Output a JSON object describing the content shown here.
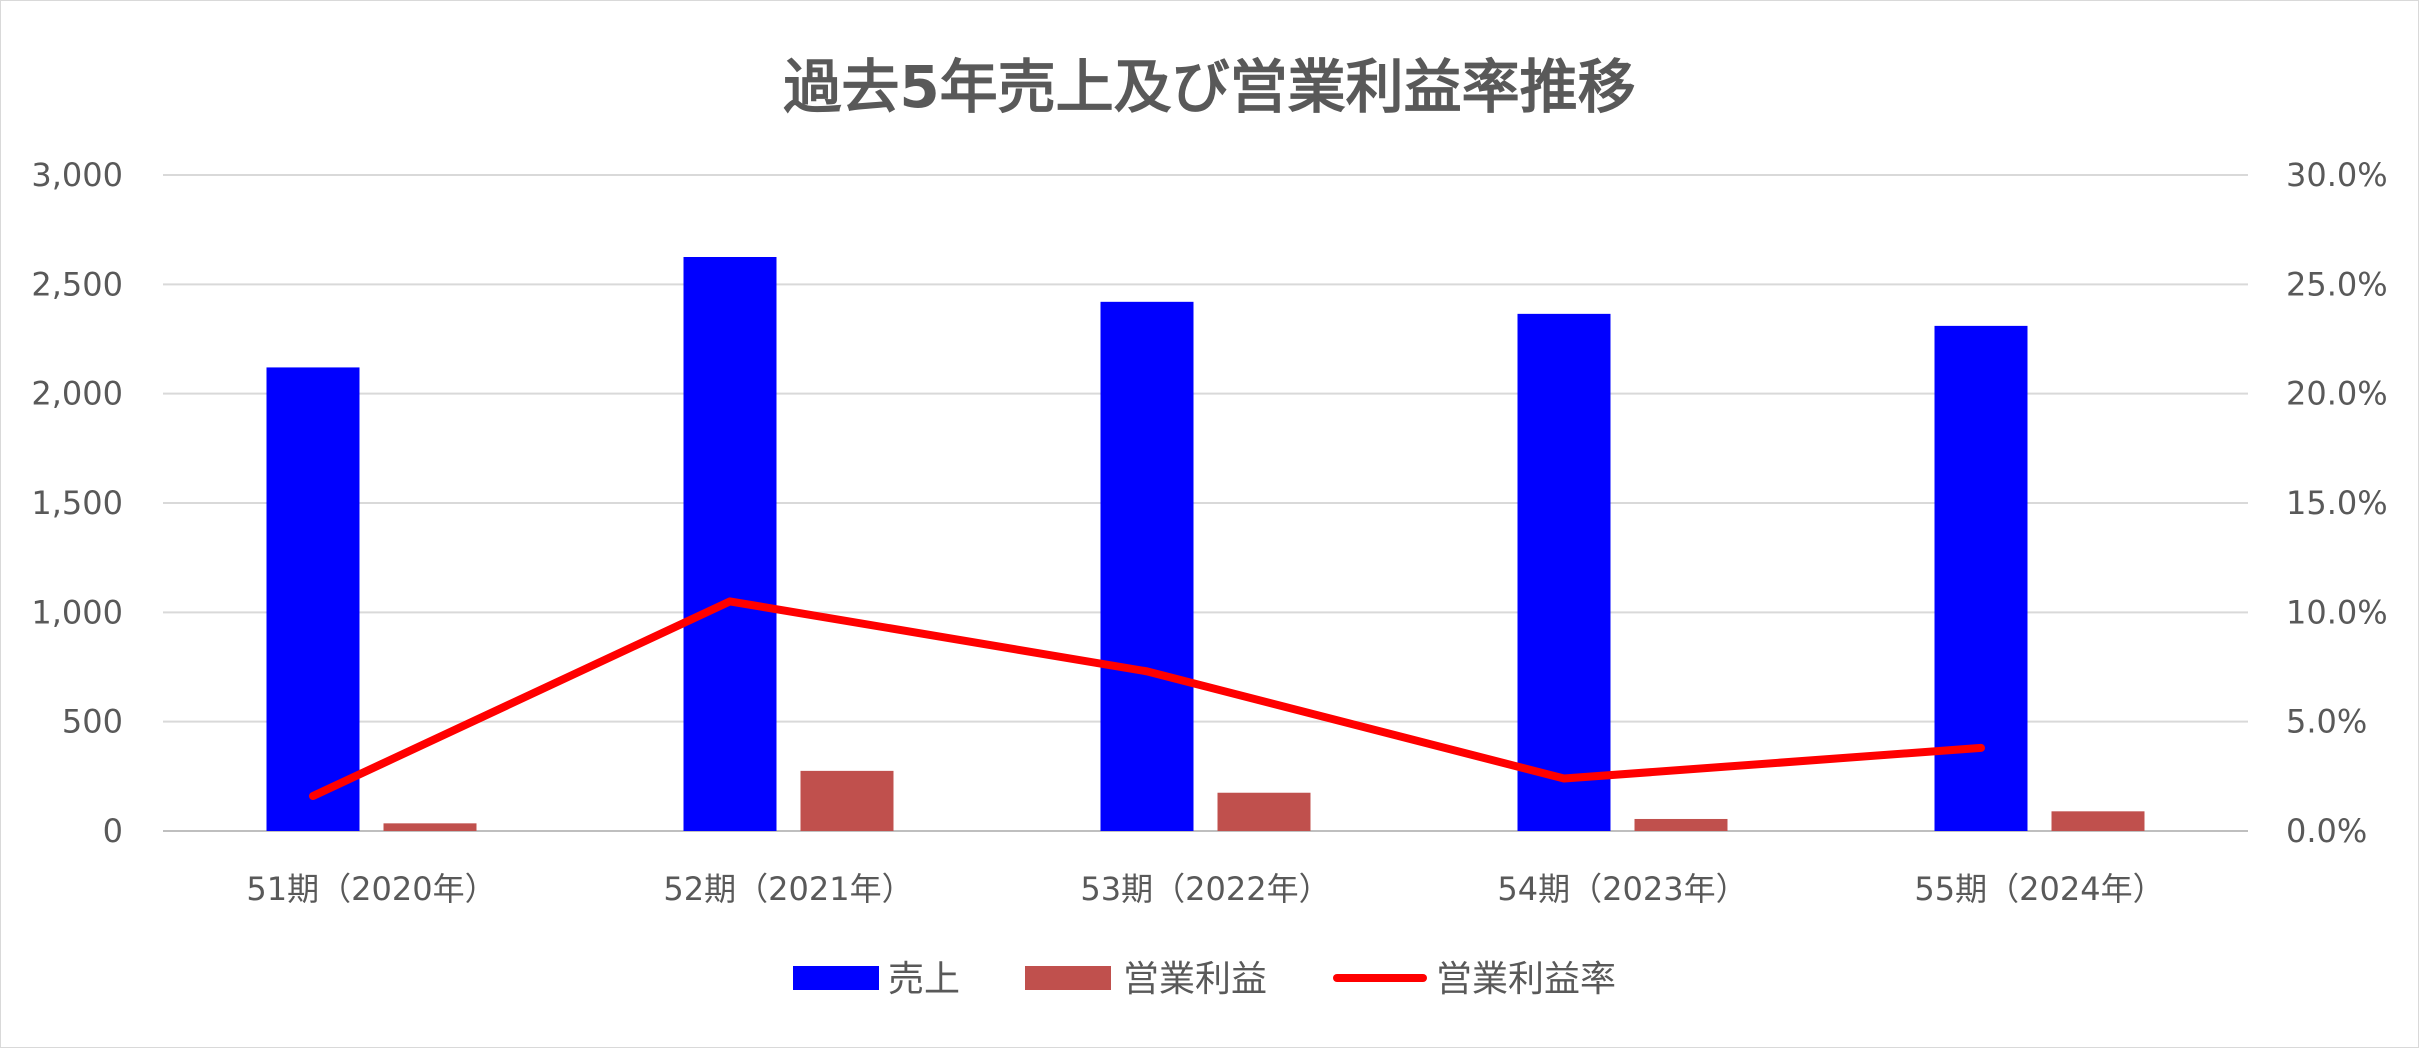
{
  "chart_data": {
    "type": "bar",
    "title": "過去5年売上及び営業利益率推移",
    "categories": [
      "51期（2020年）",
      "52期（2021年）",
      "53期（2022年）",
      "54期（2023年）",
      "55期（2024年）"
    ],
    "series": [
      {
        "name": "売上",
        "type": "bar",
        "axis": "left",
        "color": "#0000ff",
        "values": [
          2120,
          2625,
          2420,
          2365,
          2310
        ]
      },
      {
        "name": "営業利益",
        "type": "bar",
        "axis": "left",
        "color": "#c0504d",
        "values": [
          35,
          275,
          175,
          55,
          90
        ]
      },
      {
        "name": "営業利益率",
        "type": "line",
        "axis": "right",
        "color": "#ff0000",
        "values": [
          1.6,
          10.5,
          7.3,
          2.4,
          3.8
        ]
      }
    ],
    "y_left": {
      "ylim": [
        0,
        3000
      ],
      "ticks": [
        "0",
        "500",
        "1,000",
        "1,500",
        "2,000",
        "2,500",
        "3,000"
      ]
    },
    "y_right": {
      "ylim": [
        0,
        30
      ],
      "ticks": [
        "0.0%",
        "5.0%",
        "10.0%",
        "15.0%",
        "20.0%",
        "25.0%",
        "30.0%"
      ]
    },
    "grid": "horizontal",
    "legend_position": "bottom"
  }
}
